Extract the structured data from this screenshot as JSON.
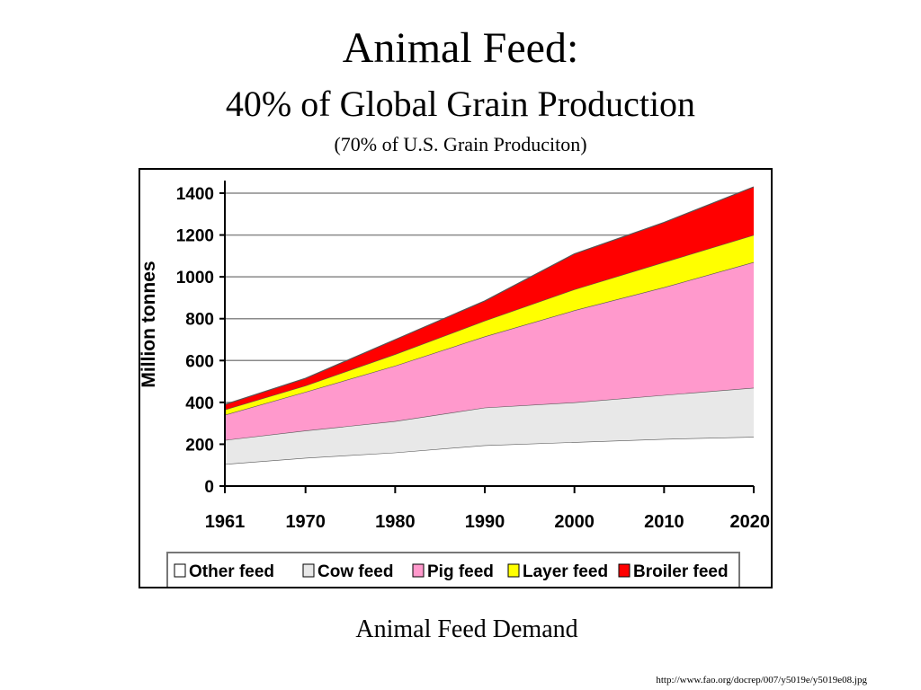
{
  "slide": {
    "title": "Animal Feed:",
    "subtitle": "40% of Global Grain Production",
    "note": "(70% of U.S. Grain Produciton)",
    "caption": "Animal Feed Demand",
    "source": "http://www.fao.org/docrep/007/y5019e/y5019e08.jpg"
  },
  "chart_data": {
    "type": "area",
    "stacked": true,
    "title": "",
    "xlabel": "",
    "ylabel": "Million tonnes",
    "x": [
      1961,
      1970,
      1980,
      1990,
      2000,
      2010,
      2020
    ],
    "xticks": [
      "1961",
      "1970",
      "1980",
      "1990",
      "2000",
      "2010",
      "2020"
    ],
    "ylim": [
      0,
      1400
    ],
    "yticks": [
      0,
      200,
      400,
      600,
      800,
      1000,
      1200,
      1400
    ],
    "grid": true,
    "legend_position": "bottom",
    "series": [
      {
        "name": "Other feed",
        "color": "#ffffff",
        "values": [
          105,
          135,
          160,
          195,
          210,
          225,
          235
        ]
      },
      {
        "name": "Cow feed",
        "color": "#e8e8e8",
        "values": [
          115,
          130,
          150,
          180,
          190,
          210,
          235
        ]
      },
      {
        "name": "Pig feed",
        "color": "#ff99cc",
        "values": [
          120,
          185,
          265,
          340,
          440,
          515,
          600
        ]
      },
      {
        "name": "Layer feed",
        "color": "#ffff00",
        "values": [
          25,
          30,
          55,
          75,
          100,
          120,
          130
        ]
      },
      {
        "name": "Broiler feed",
        "color": "#ff0000",
        "values": [
          25,
          35,
          70,
          95,
          170,
          190,
          230
        ]
      }
    ]
  }
}
